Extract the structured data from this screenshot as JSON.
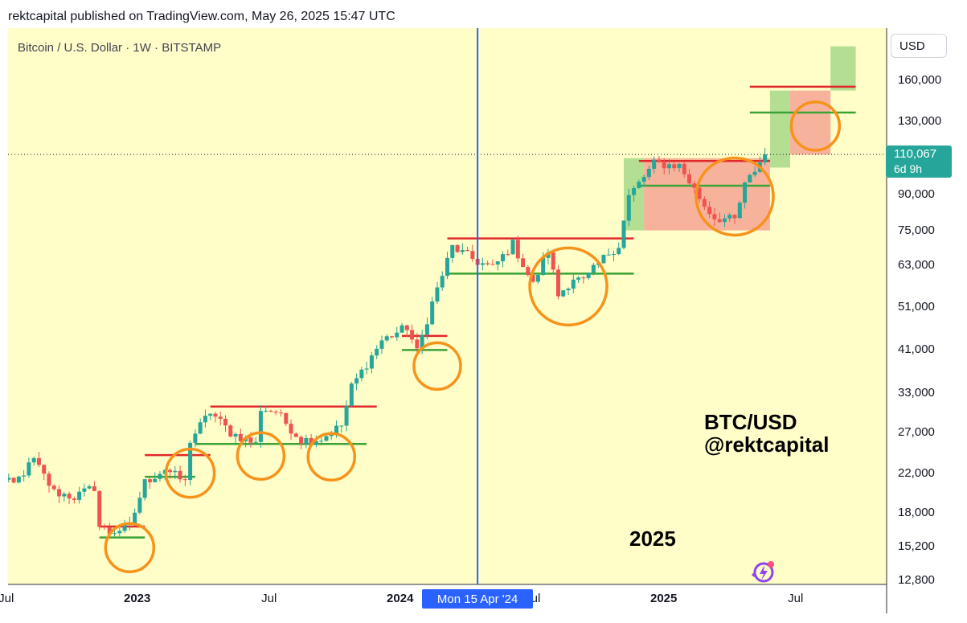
{
  "header": {
    "text": "rektcapital published on TradingView.com, May 26, 2025 15:47 UTC"
  },
  "chart": {
    "symbol_title": "Bitcoin / U.S. Dollar · 1W · BITSTAMP",
    "currency": "USD",
    "current_price": "110,067",
    "countdown": "6d 9h",
    "crosshair_label": "Mon 15 Apr '24",
    "watermark_line1": "BTC/USD",
    "watermark_line2": "@rektcapital",
    "year_label": "2025",
    "price_ticks": [
      "160,000",
      "130,000",
      "90,000",
      "75,000",
      "63,000",
      "51,000",
      "41,000",
      "33,000",
      "27,000",
      "22,000",
      "18,000",
      "15,200",
      "12,800"
    ],
    "time_ticks": [
      "Jul",
      "2023",
      "Jul",
      "2024",
      "Jul",
      "2025",
      "Jul"
    ],
    "colors": {
      "background": "#fffdc8",
      "up": "#26a69a",
      "down": "#ef5350",
      "resistance": "#e0282a",
      "support": "#3aa335",
      "circle": "#f7931a",
      "crosshair": "#2962ff"
    }
  },
  "chart_data": {
    "type": "candlestick",
    "title": "Bitcoin / U.S. Dollar · 1W · BITSTAMP",
    "scale": "log",
    "ylim": [
      12800,
      190000
    ],
    "y_ticks": [
      160000,
      130000,
      90000,
      75000,
      63000,
      51000,
      41000,
      33000,
      27000,
      22000,
      18000,
      15200,
      12800
    ],
    "x_ticks": [
      "Jul",
      "2023",
      "Jul",
      "2024",
      "Jul",
      "2025",
      "Jul"
    ],
    "last_price": 110067,
    "anchors": [
      [
        "2022-06-13",
        21500
      ],
      [
        "2022-07-11",
        20800
      ],
      [
        "2022-08-08",
        23500
      ],
      [
        "2022-09-05",
        20000
      ],
      [
        "2022-10-03",
        19500
      ],
      [
        "2022-10-31",
        20500
      ],
      [
        "2022-11-07",
        16800
      ],
      [
        "2022-11-21",
        16300
      ],
      [
        "2022-12-19",
        16800
      ],
      [
        "2023-01-09",
        21000
      ],
      [
        "2023-02-06",
        22500
      ],
      [
        "2023-03-06",
        21000
      ],
      [
        "2023-03-13",
        26000
      ],
      [
        "2023-04-10",
        30000
      ],
      [
        "2023-05-08",
        27000
      ],
      [
        "2023-06-12",
        25500
      ],
      [
        "2023-06-19",
        30500
      ],
      [
        "2023-07-10",
        30000
      ],
      [
        "2023-08-14",
        26000
      ],
      [
        "2023-09-11",
        26200
      ],
      [
        "2023-10-09",
        28000
      ],
      [
        "2023-10-23",
        34000
      ],
      [
        "2023-12-04",
        43000
      ],
      [
        "2024-01-08",
        46000
      ],
      [
        "2024-01-22",
        40500
      ],
      [
        "2024-02-12",
        52000
      ],
      [
        "2024-03-11",
        69000
      ],
      [
        "2024-04-15",
        64000
      ],
      [
        "2024-05-06",
        62000
      ],
      [
        "2024-06-03",
        70000
      ],
      [
        "2024-07-01",
        57000
      ],
      [
        "2024-07-22",
        68000
      ],
      [
        "2024-08-05",
        54000
      ],
      [
        "2024-08-26",
        59000
      ],
      [
        "2024-09-09",
        58000
      ],
      [
        "2024-10-14",
        67000
      ],
      [
        "2024-10-28",
        69500
      ],
      [
        "2024-11-11",
        89000
      ],
      [
        "2024-12-16",
        105000
      ],
      [
        "2025-01-20",
        104000
      ],
      [
        "2025-02-24",
        85000
      ],
      [
        "2025-03-10",
        80000
      ],
      [
        "2025-04-07",
        79000
      ],
      [
        "2025-04-21",
        94000
      ],
      [
        "2025-05-19",
        110067
      ]
    ],
    "horizontal_levels": [
      {
        "role": "resistance",
        "price": 16800,
        "from": "2022-11-07",
        "to": "2023-01-09"
      },
      {
        "role": "support",
        "price": 15900,
        "from": "2022-11-07",
        "to": "2023-01-09"
      },
      {
        "role": "resistance",
        "price": 24100,
        "from": "2023-01-09",
        "to": "2023-04-10"
      },
      {
        "role": "support",
        "price": 21600,
        "from": "2023-01-09",
        "to": "2023-03-20"
      },
      {
        "role": "resistance",
        "price": 30800,
        "from": "2023-04-10",
        "to": "2023-11-27"
      },
      {
        "role": "support",
        "price": 25500,
        "from": "2023-03-20",
        "to": "2023-11-13"
      },
      {
        "role": "resistance",
        "price": 44000,
        "from": "2024-01-01",
        "to": "2024-03-04"
      },
      {
        "role": "support",
        "price": 41000,
        "from": "2024-01-01",
        "to": "2024-03-04"
      },
      {
        "role": "resistance",
        "price": 72000,
        "from": "2024-03-04",
        "to": "2024-11-18"
      },
      {
        "role": "support",
        "price": 60300,
        "from": "2024-03-04",
        "to": "2024-11-18"
      },
      {
        "role": "resistance",
        "price": 106500,
        "from": "2024-11-25",
        "to": "2025-05-26"
      },
      {
        "role": "support",
        "price": 94000,
        "from": "2024-11-25",
        "to": "2025-05-26"
      },
      {
        "role": "resistance",
        "price": 155000,
        "from": "2025-04-28",
        "to": "2025-09-22"
      },
      {
        "role": "support",
        "price": 136000,
        "from": "2025-04-28",
        "to": "2025-09-22"
      }
    ],
    "zones": [
      {
        "color": "green",
        "from": "2024-11-04",
        "to": "2024-12-02",
        "low": 75000,
        "high": 108000
      },
      {
        "color": "red",
        "from": "2024-12-02",
        "to": "2025-05-26",
        "low": 75000,
        "high": 108000
      },
      {
        "color": "green",
        "from": "2025-05-26",
        "to": "2025-06-23",
        "low": 103000,
        "high": 152000
      },
      {
        "color": "red",
        "from": "2025-06-23",
        "to": "2025-08-18",
        "low": 110000,
        "high": 152000
      },
      {
        "color": "green",
        "from": "2025-08-18",
        "to": "2025-09-22",
        "low": 152000,
        "high": 190000
      }
    ],
    "circles": [
      {
        "date": "2022-12-19",
        "price": 15100
      },
      {
        "date": "2023-03-13",
        "price": 22000
      },
      {
        "date": "2023-06-19",
        "price": 24000
      },
      {
        "date": "2023-09-25",
        "price": 23900
      },
      {
        "date": "2024-02-19",
        "price": 37800
      },
      {
        "date": "2024-08-19",
        "price": 56500
      },
      {
        "date": "2025-04-07",
        "price": 89000
      },
      {
        "date": "2025-07-28",
        "price": 127000
      }
    ],
    "crosshair_date": "2024-04-15"
  }
}
